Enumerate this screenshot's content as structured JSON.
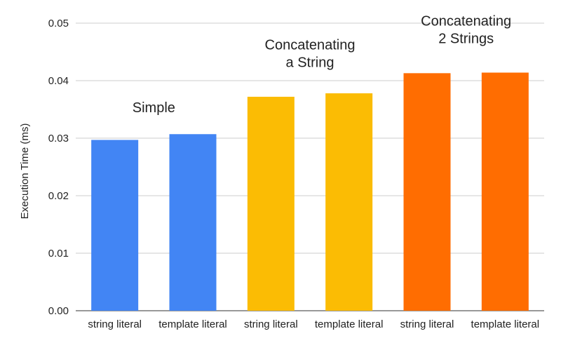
{
  "chart_data": {
    "type": "bar",
    "title": "",
    "xlabel": "",
    "ylabel": "Execution Time (ms)",
    "ylim": [
      0,
      0.05
    ],
    "yticks": [
      "0.00",
      "0.01",
      "0.02",
      "0.03",
      "0.04",
      "0.05"
    ],
    "grid": true,
    "legend": "none",
    "categories": [
      "string literal",
      "template literal",
      "string literal",
      "template literal",
      "string literal",
      "template literal"
    ],
    "values": [
      0.0297,
      0.0307,
      0.0372,
      0.0378,
      0.0413,
      0.0414
    ],
    "bar_colors": [
      "#4285f4",
      "#4285f4",
      "#fbbc04",
      "#fbbc04",
      "#ff6d01",
      "#ff6d01"
    ],
    "groups": [
      {
        "label_lines": [
          "Simple"
        ],
        "bar_indices": [
          0,
          1
        ],
        "label_y_value": 0.0345
      },
      {
        "label_lines": [
          "Concatenating",
          "a String"
        ],
        "bar_indices": [
          2,
          3
        ],
        "label_y_value": 0.0454
      },
      {
        "label_lines": [
          "Concatenating",
          "2 Strings"
        ],
        "bar_indices": [
          4,
          5
        ],
        "label_y_value": 0.0496
      }
    ]
  }
}
